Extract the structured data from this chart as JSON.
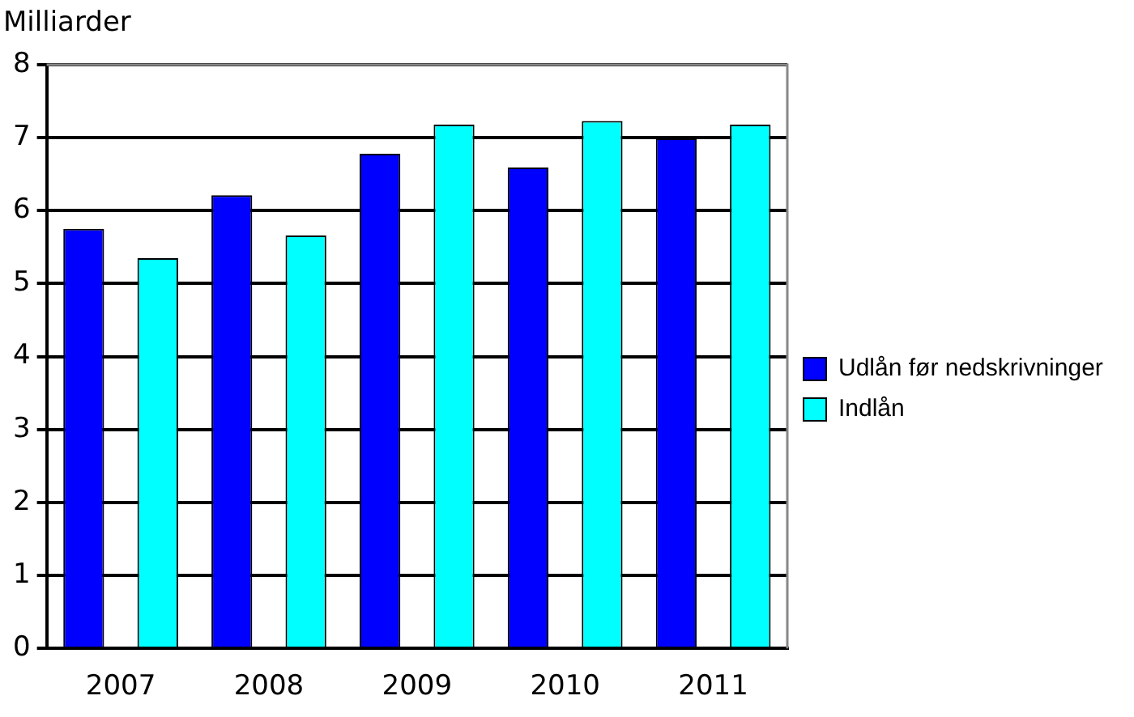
{
  "chart_data": {
    "type": "bar",
    "ylabel": "Milliarder",
    "categories": [
      "2007",
      "2008",
      "2009",
      "2010",
      "2011"
    ],
    "series": [
      {
        "name": "Udlån før nedskrivninger",
        "color": "#0000ff",
        "values": [
          5.75,
          6.21,
          6.78,
          6.59,
          6.99
        ]
      },
      {
        "name": "Indlån",
        "color": "#00ffff",
        "values": [
          5.35,
          5.66,
          7.18,
          7.23,
          7.18
        ]
      }
    ],
    "ylim": [
      0,
      8
    ],
    "yticks": [
      0,
      1,
      2,
      3,
      4,
      5,
      6,
      7,
      8
    ],
    "grid": "y",
    "legend": "right"
  }
}
